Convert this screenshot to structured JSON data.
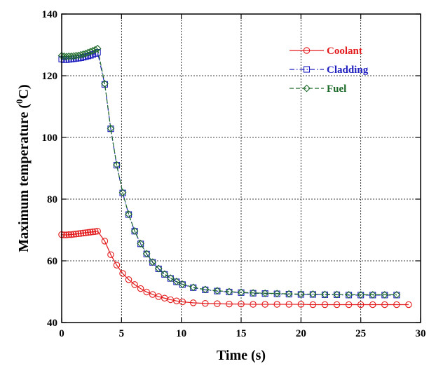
{
  "chart_data": {
    "type": "line",
    "xlabel": "Time (s)",
    "ylabel_main": "Maximum temperature (",
    "ylabel_sup": "0",
    "ylabel_tail": "C)",
    "xlim": [
      0,
      30
    ],
    "ylim": [
      40,
      140
    ],
    "xticks": [
      0,
      5,
      10,
      15,
      20,
      25,
      30
    ],
    "yticks": [
      40,
      60,
      80,
      100,
      120,
      140
    ],
    "grid": true,
    "legend_position": "top-right",
    "series": [
      {
        "name": "Coolant",
        "color": "#e31a1c",
        "marker": "circle",
        "line_style": "solid",
        "x": [
          0,
          0.2,
          0.4,
          0.6,
          0.8,
          1.0,
          1.2,
          1.4,
          1.6,
          1.8,
          2.0,
          2.2,
          2.4,
          2.6,
          2.8,
          3.0,
          3.6,
          4.1,
          4.6,
          5.1,
          5.6,
          6.1,
          6.6,
          7.1,
          7.6,
          8.1,
          8.6,
          9.1,
          9.6,
          10.1,
          11,
          12,
          13,
          14,
          15,
          16,
          17,
          18,
          19,
          20,
          21,
          22,
          23,
          24,
          25,
          26,
          27,
          28,
          29
        ],
        "y": [
          68.5,
          68.4,
          68.4,
          68.5,
          68.5,
          68.6,
          68.7,
          68.8,
          68.9,
          69.0,
          69.1,
          69.2,
          69.3,
          69.4,
          69.5,
          69.6,
          66.4,
          62.0,
          58.6,
          55.9,
          53.9,
          52.3,
          51.0,
          49.9,
          49.1,
          48.4,
          47.9,
          47.4,
          47.0,
          46.7,
          46.4,
          46.2,
          46.1,
          46.0,
          46.0,
          45.9,
          45.9,
          45.9,
          45.9,
          45.9,
          45.8,
          45.8,
          45.8,
          45.8,
          45.8,
          45.8,
          45.8,
          45.8,
          45.8
        ]
      },
      {
        "name": "Cladding",
        "color": "#1f1fbf",
        "marker": "square",
        "line_style": "dashdot",
        "x": [
          0,
          0.2,
          0.4,
          0.6,
          0.8,
          1.0,
          1.2,
          1.4,
          1.6,
          1.8,
          2.0,
          2.2,
          2.4,
          2.6,
          2.8,
          3.0,
          3.6,
          4.1,
          4.6,
          5.1,
          5.6,
          6.1,
          6.6,
          7.1,
          7.6,
          8.1,
          8.6,
          9.1,
          9.6,
          10.1,
          11,
          12,
          13,
          14,
          15,
          16,
          17,
          18,
          19,
          20,
          21,
          22,
          23,
          24,
          25,
          26,
          27,
          28
        ],
        "y": [
          125.4,
          125.2,
          125.2,
          125.3,
          125.4,
          125.5,
          125.6,
          125.7,
          125.8,
          126.0,
          126.2,
          126.4,
          126.6,
          126.9,
          127.2,
          127.6,
          117.2,
          102.8,
          91.0,
          82.0,
          75.0,
          69.6,
          65.5,
          62.2,
          59.5,
          57.4,
          55.6,
          54.3,
          53.2,
          52.3,
          51.3,
          50.6,
          50.2,
          49.9,
          49.7,
          49.5,
          49.4,
          49.3,
          49.2,
          49.1,
          49.1,
          49.0,
          49.0,
          48.9,
          48.9,
          48.9,
          48.9,
          48.9
        ]
      },
      {
        "name": "Fuel",
        "color": "#1e6b2a",
        "marker": "diamond",
        "line_style": "dashed",
        "x": [
          0,
          0.2,
          0.4,
          0.6,
          0.8,
          1.0,
          1.2,
          1.4,
          1.6,
          1.8,
          2.0,
          2.2,
          2.4,
          2.6,
          2.8,
          3.0,
          3.6,
          4.1,
          4.6,
          5.1,
          5.6,
          6.1,
          6.6,
          7.1,
          7.6,
          8.1,
          8.6,
          9.1,
          9.6,
          10.1,
          11,
          12,
          13,
          14,
          15,
          16,
          17,
          18,
          19,
          20,
          21,
          22,
          23,
          24,
          25,
          26,
          27,
          28
        ],
        "y": [
          126.5,
          126.3,
          126.2,
          126.3,
          126.3,
          126.4,
          126.5,
          126.6,
          126.8,
          127.0,
          127.2,
          127.5,
          127.8,
          128.1,
          128.4,
          128.8,
          117.4,
          102.9,
          91.1,
          82.1,
          75.1,
          69.7,
          65.6,
          62.3,
          59.6,
          57.5,
          55.7,
          54.4,
          53.3,
          52.4,
          51.4,
          50.7,
          50.3,
          50.0,
          49.8,
          49.6,
          49.5,
          49.4,
          49.3,
          49.2,
          49.2,
          49.1,
          49.1,
          49.0,
          49.0,
          49.0,
          49.0,
          49.0
        ]
      }
    ]
  }
}
